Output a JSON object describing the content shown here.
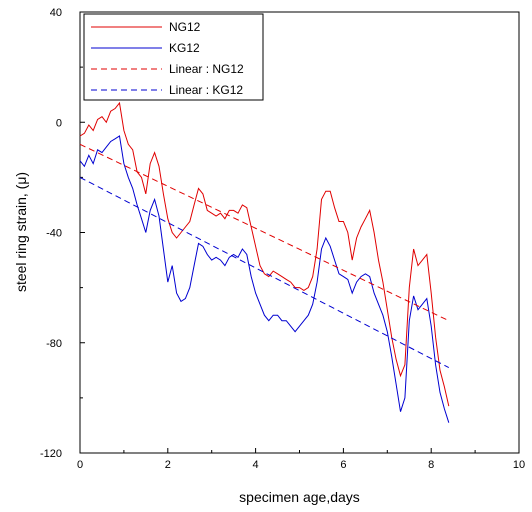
{
  "chart_data": {
    "type": "line",
    "title": "",
    "xlabel": "specimen age,days",
    "ylabel": "steel ring strain, (μ)",
    "xlim": [
      0,
      10
    ],
    "ylim": [
      -120,
      40
    ],
    "xticks": [
      "0",
      "2",
      "4",
      "6",
      "8",
      "10"
    ],
    "yticks": [
      "40",
      "0",
      "-40",
      "-80",
      "-120"
    ],
    "grid": false,
    "legend_position": "top-left",
    "series": [
      {
        "name": "NG12",
        "color": "#e00000",
        "style": "solid",
        "x": [
          0,
          0.1,
          0.2,
          0.3,
          0.4,
          0.5,
          0.6,
          0.7,
          0.8,
          0.9,
          1.0,
          1.1,
          1.2,
          1.3,
          1.4,
          1.5,
          1.6,
          1.7,
          1.8,
          1.9,
          2.0,
          2.1,
          2.2,
          2.3,
          2.4,
          2.5,
          2.6,
          2.7,
          2.8,
          2.9,
          3.0,
          3.1,
          3.2,
          3.3,
          3.4,
          3.5,
          3.6,
          3.7,
          3.8,
          3.9,
          4.0,
          4.1,
          4.2,
          4.3,
          4.4,
          4.5,
          4.6,
          4.7,
          4.8,
          4.9,
          5.0,
          5.1,
          5.2,
          5.3,
          5.4,
          5.5,
          5.6,
          5.7,
          5.8,
          5.9,
          6.0,
          6.1,
          6.2,
          6.3,
          6.4,
          6.5,
          6.6,
          6.7,
          6.8,
          6.9,
          7.0,
          7.1,
          7.2,
          7.3,
          7.4,
          7.5,
          7.6,
          7.7,
          7.8,
          7.9,
          8.0,
          8.1,
          8.2,
          8.3,
          8.4
        ],
        "y": [
          -5,
          -4,
          -1,
          -3,
          1,
          2,
          0,
          4,
          5,
          7,
          -3,
          -8,
          -10,
          -18,
          -20,
          -26,
          -15,
          -11,
          -16,
          -26,
          -35,
          -40,
          -42,
          -40,
          -38,
          -36,
          -30,
          -24,
          -26,
          -32,
          -33,
          -34,
          -33,
          -35,
          -32,
          -32,
          -33,
          -30,
          -31,
          -38,
          -45,
          -52,
          -55,
          -56,
          -54,
          -55,
          -56,
          -57,
          -58,
          -60,
          -60,
          -61,
          -60,
          -56,
          -46,
          -28,
          -25,
          -25,
          -31,
          -36,
          -36,
          -40,
          -50,
          -42,
          -38,
          -35,
          -32,
          -40,
          -50,
          -58,
          -68,
          -78,
          -86,
          -92,
          -88,
          -60,
          -46,
          -52,
          -50,
          -48,
          -62,
          -78,
          -90,
          -96,
          -103
        ]
      },
      {
        "name": "KG12",
        "color": "#0000d0",
        "style": "solid",
        "x": [
          0,
          0.1,
          0.2,
          0.3,
          0.4,
          0.5,
          0.6,
          0.7,
          0.8,
          0.9,
          1.0,
          1.1,
          1.2,
          1.3,
          1.4,
          1.5,
          1.6,
          1.7,
          1.8,
          1.9,
          2.0,
          2.1,
          2.2,
          2.3,
          2.4,
          2.5,
          2.6,
          2.7,
          2.8,
          2.9,
          3.0,
          3.1,
          3.2,
          3.3,
          3.4,
          3.5,
          3.6,
          3.7,
          3.8,
          3.9,
          4.0,
          4.1,
          4.2,
          4.3,
          4.4,
          4.5,
          4.6,
          4.7,
          4.8,
          4.9,
          5.0,
          5.1,
          5.2,
          5.3,
          5.4,
          5.5,
          5.6,
          5.7,
          5.8,
          5.9,
          6.0,
          6.1,
          6.2,
          6.3,
          6.4,
          6.5,
          6.6,
          6.7,
          6.8,
          6.9,
          7.0,
          7.1,
          7.2,
          7.3,
          7.4,
          7.5,
          7.6,
          7.7,
          7.8,
          7.9,
          8.0,
          8.1,
          8.2,
          8.3,
          8.4
        ],
        "y": [
          -14,
          -16,
          -12,
          -15,
          -10,
          -11,
          -9,
          -7,
          -6,
          -5,
          -15,
          -20,
          -24,
          -30,
          -35,
          -40,
          -32,
          -28,
          -34,
          -46,
          -58,
          -52,
          -62,
          -65,
          -64,
          -60,
          -52,
          -44,
          -45,
          -48,
          -50,
          -49,
          -50,
          -52,
          -49,
          -48,
          -49,
          -46,
          -48,
          -56,
          -62,
          -66,
          -70,
          -72,
          -70,
          -70,
          -72,
          -72,
          -74,
          -76,
          -74,
          -72,
          -70,
          -66,
          -58,
          -46,
          -42,
          -45,
          -50,
          -55,
          -56,
          -57,
          -62,
          -58,
          -56,
          -55,
          -56,
          -62,
          -66,
          -70,
          -76,
          -85,
          -95,
          -105,
          -100,
          -72,
          -63,
          -68,
          -66,
          -64,
          -74,
          -88,
          -98,
          -104,
          -109
        ]
      },
      {
        "name": "Linear : NG12",
        "color": "#e00000",
        "style": "dashed",
        "x": [
          0,
          8.4
        ],
        "y": [
          -8,
          -72
        ]
      },
      {
        "name": "Linear : KG12",
        "color": "#0000d0",
        "style": "dashed",
        "x": [
          0,
          8.4
        ],
        "y": [
          -20,
          -89
        ]
      }
    ]
  }
}
